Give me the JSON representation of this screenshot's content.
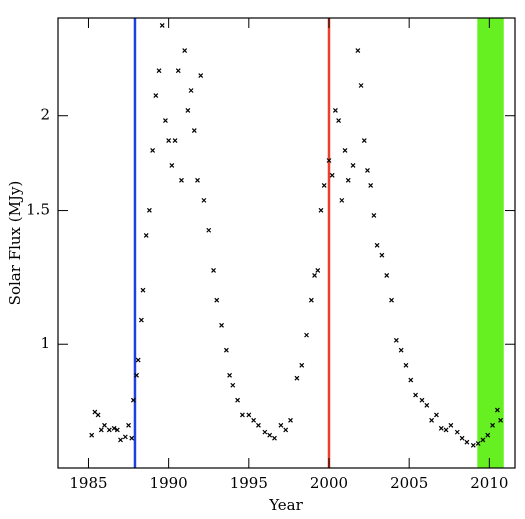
{
  "chart_data": {
    "type": "scatter",
    "xlabel": "Year",
    "ylabel": "Solar Flux (MJy)",
    "xlim": [
      1983.1,
      2011.6
    ],
    "ylim": [
      0.687,
      2.69
    ],
    "ylog": true,
    "xticks": [
      1985,
      1990,
      1995,
      2000,
      2005,
      2010
    ],
    "yticks": [
      1,
      1.5,
      2
    ],
    "color": "#000000",
    "vlines": [
      {
        "x": 1987.9,
        "color": "#1f3fe0"
      },
      {
        "x": 2000,
        "color": "#e8402a"
      }
    ],
    "span": {
      "x": [
        2009.25,
        2010.9
      ],
      "color": "#66f022"
    },
    "x": [
      1985.2,
      1985.4,
      1985.6,
      1985.8,
      1986,
      1986.3,
      1986.6,
      1986.8,
      1987,
      1987.3,
      1987.5,
      1987.7,
      1987.8,
      1988,
      1988.1,
      1988.3,
      1988.4,
      1988.6,
      1988.8,
      1989,
      1989.2,
      1989.4,
      1989.6,
      1989.8,
      1990,
      1990.2,
      1990.4,
      1990.6,
      1990.8,
      1991,
      1991.2,
      1991.4,
      1991.6,
      1991.8,
      1992,
      1992.2,
      1992.5,
      1992.8,
      1993,
      1993.3,
      1993.6,
      1993.8,
      1994,
      1994.3,
      1994.6,
      1995,
      1995.3,
      1995.6,
      1996,
      1996.3,
      1996.6,
      1997,
      1997.3,
      1997.6,
      1998,
      1998.3,
      1998.6,
      1998.9,
      1999.1,
      1999.3,
      1999.5,
      1999.7,
      2000,
      2000.2,
      2000.4,
      2000.6,
      2000.8,
      2001,
      2001.2,
      2001.5,
      2001.8,
      2002,
      2002.2,
      2002.4,
      2002.6,
      2002.8,
      2003,
      2003.3,
      2003.6,
      2003.9,
      2004.2,
      2004.5,
      2004.8,
      2005.1,
      2005.4,
      2005.8,
      2006.1,
      2006.4,
      2006.7,
      2007,
      2007.3,
      2007.6,
      2008,
      2008.3,
      2008.6,
      2009,
      2009.3,
      2009.6,
      2009.9,
      2010.2,
      2010.5,
      2010.7
    ],
    "values": [
      0.759,
      0.814,
      0.807,
      0.771,
      0.782,
      0.771,
      0.775,
      0.771,
      0.748,
      0.755,
      0.782,
      0.752,
      0.844,
      0.91,
      0.953,
      1.076,
      1.178,
      1.391,
      1.501,
      1.8,
      2.126,
      2.293,
      2.63,
      1.971,
      1.855,
      1.72,
      1.855,
      2.293,
      1.644,
      2.437,
      2.032,
      2.159,
      1.912,
      1.644,
      2.259,
      1.547,
      1.413,
      1.251,
      1.143,
      1.059,
      0.982,
      0.91,
      0.883,
      0.844,
      0.807,
      0.807,
      0.794,
      0.782,
      0.766,
      0.759,
      0.752,
      0.782,
      0.771,
      0.794,
      0.902,
      0.938,
      1.028,
      1.143,
      1.232,
      1.251,
      1.501,
      1.619,
      1.746,
      1.669,
      2.032,
      1.971,
      1.547,
      1.8,
      1.644,
      1.72,
      2.437,
      2.192,
      1.855,
      1.694,
      1.619,
      1.478,
      1.35,
      1.31,
      1.232,
      1.143,
      1.012,
      0.982,
      0.938,
      0.897,
      0.857,
      0.844,
      0.831,
      0.794,
      0.807,
      0.775,
      0.771,
      0.782,
      0.766,
      0.752,
      0.743,
      0.736,
      0.74,
      0.748,
      0.759,
      0.782,
      0.819,
      0.794
    ]
  }
}
